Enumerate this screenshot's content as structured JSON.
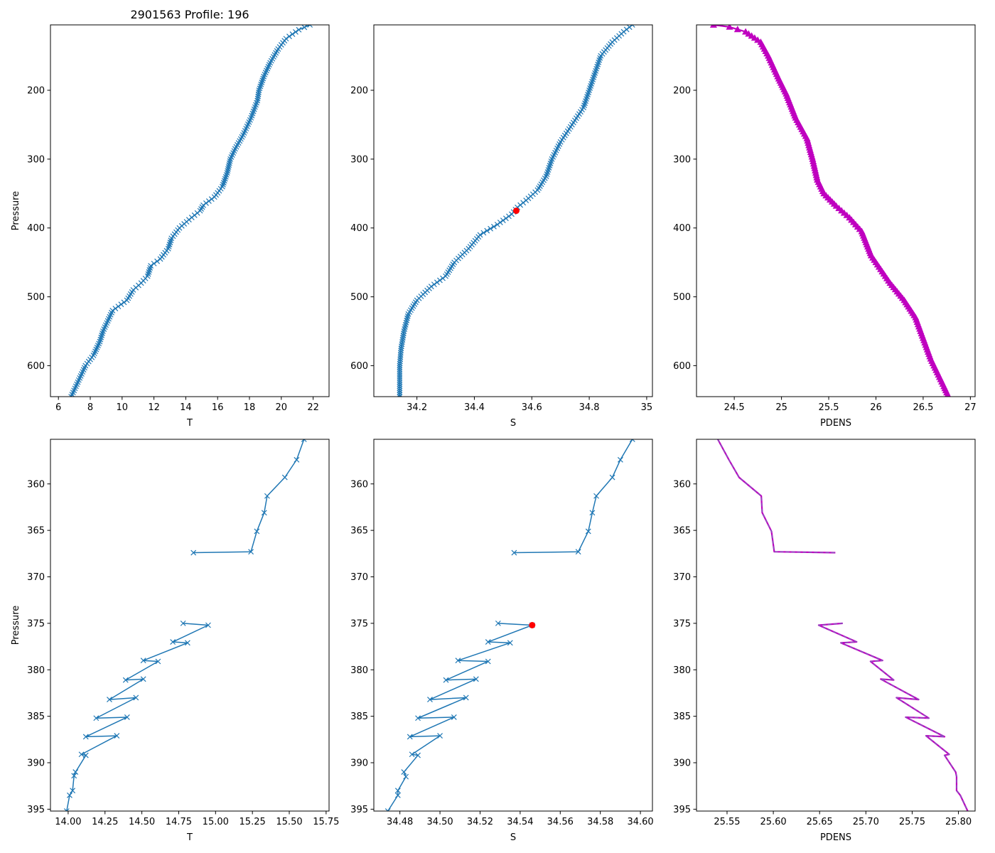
{
  "title": "2901563 Profile: 196",
  "colors": {
    "series": "#1f77b4",
    "highlight": "#ff0000",
    "density": "#bf00bf",
    "density_dash": "#8060c0"
  },
  "chart_data": [
    {
      "type": "line",
      "name": "temperature-full",
      "xlabel": "T",
      "ylabel": "Pressure",
      "xlim": [
        5.5,
        23
      ],
      "ylim": [
        645,
        105
      ],
      "xticks": [
        6,
        8,
        10,
        12,
        14,
        16,
        18,
        20,
        22
      ],
      "yticks": [
        200,
        300,
        400,
        500,
        600
      ],
      "marker": "x",
      "series": [
        {
          "name": "T",
          "points": [
            [
              21.8,
              105
            ],
            [
              21.1,
              112
            ],
            [
              20.3,
              125
            ],
            [
              19.8,
              140
            ],
            [
              19.3,
              160
            ],
            [
              18.9,
              180
            ],
            [
              18.6,
              200
            ],
            [
              18.5,
              215
            ],
            [
              18.1,
              240
            ],
            [
              17.6,
              265
            ],
            [
              17.1,
              285
            ],
            [
              16.8,
              300
            ],
            [
              16.6,
              320
            ],
            [
              16.3,
              340
            ],
            [
              15.8,
              355
            ],
            [
              15.1,
              367
            ],
            [
              14.9,
              375
            ],
            [
              14.2,
              388
            ],
            [
              13.6,
              400
            ],
            [
              13.1,
              415
            ],
            [
              12.9,
              430
            ],
            [
              12.4,
              445
            ],
            [
              11.8,
              455
            ],
            [
              11.6,
              470
            ],
            [
              11.2,
              480
            ],
            [
              10.7,
              490
            ],
            [
              10.3,
              505
            ],
            [
              9.4,
              520
            ],
            [
              9.1,
              535
            ],
            [
              8.8,
              550
            ],
            [
              8.6,
              565
            ],
            [
              8.2,
              585
            ],
            [
              7.7,
              600
            ],
            [
              7.4,
              615
            ],
            [
              7.1,
              630
            ],
            [
              6.8,
              645
            ]
          ]
        }
      ]
    },
    {
      "type": "line",
      "name": "salinity-full",
      "xlabel": "S",
      "ylabel": "",
      "xlim": [
        34.05,
        35.02
      ],
      "ylim": [
        645,
        105
      ],
      "xticks": [
        34.2,
        34.4,
        34.6,
        34.8,
        35.0
      ],
      "yticks": [
        200,
        300,
        400,
        500,
        600
      ],
      "marker": "x",
      "highlight": {
        "x": 34.546,
        "y": 375
      },
      "series": [
        {
          "name": "S",
          "points": [
            [
              34.95,
              105
            ],
            [
              34.92,
              115
            ],
            [
              34.88,
              130
            ],
            [
              34.84,
              150
            ],
            [
              34.82,
              175
            ],
            [
              34.8,
              200
            ],
            [
              34.78,
              225
            ],
            [
              34.74,
              250
            ],
            [
              34.7,
              275
            ],
            [
              34.67,
              300
            ],
            [
              34.65,
              325
            ],
            [
              34.62,
              345
            ],
            [
              34.58,
              360
            ],
            [
              34.55,
              370
            ],
            [
              34.53,
              380
            ],
            [
              34.48,
              395
            ],
            [
              34.42,
              410
            ],
            [
              34.38,
              430
            ],
            [
              34.33,
              450
            ],
            [
              34.3,
              470
            ],
            [
              34.25,
              485
            ],
            [
              34.2,
              505
            ],
            [
              34.17,
              525
            ],
            [
              34.155,
              550
            ],
            [
              34.145,
              575
            ],
            [
              34.14,
              600
            ],
            [
              34.14,
              645
            ]
          ]
        }
      ]
    },
    {
      "type": "line",
      "name": "density-full",
      "xlabel": "PDENS",
      "ylabel": "",
      "xlim": [
        24.1,
        27.05
      ],
      "ylim": [
        645,
        105
      ],
      "xticks": [
        24.5,
        25.0,
        25.5,
        26.0,
        26.5,
        27.0
      ],
      "yticks": [
        200,
        300,
        400,
        500,
        600
      ],
      "marker": "^",
      "series": [
        {
          "name": "PDENS",
          "points": [
            [
              24.28,
              105
            ],
            [
              24.45,
              108
            ],
            [
              24.62,
              115
            ],
            [
              24.78,
              130
            ],
            [
              24.86,
              150
            ],
            [
              24.96,
              180
            ],
            [
              25.05,
              205
            ],
            [
              25.15,
              240
            ],
            [
              25.27,
              270
            ],
            [
              25.33,
              300
            ],
            [
              25.38,
              330
            ],
            [
              25.45,
              350
            ],
            [
              25.58,
              368
            ],
            [
              25.72,
              385
            ],
            [
              25.85,
              405
            ],
            [
              25.95,
              440
            ],
            [
              26.05,
              460
            ],
            [
              26.15,
              480
            ],
            [
              26.3,
              505
            ],
            [
              26.42,
              530
            ],
            [
              26.5,
              560
            ],
            [
              26.58,
              590
            ],
            [
              26.65,
              610
            ],
            [
              26.72,
              630
            ],
            [
              26.77,
              645
            ]
          ]
        }
      ]
    },
    {
      "type": "line",
      "name": "temperature-zoom",
      "xlabel": "T",
      "ylabel": "Pressure",
      "xlim": [
        13.88,
        15.77
      ],
      "ylim": [
        395.2,
        355.2
      ],
      "xticks": [
        14.0,
        14.25,
        14.5,
        14.75,
        15.0,
        15.25,
        15.5,
        15.75
      ],
      "xtick_labels": [
        "14.00",
        "14.25",
        "14.50",
        "14.75",
        "15.00",
        "15.25",
        "15.50",
        "15.75"
      ],
      "yticks": [
        360,
        365,
        370,
        375,
        380,
        385,
        390,
        395
      ],
      "marker": "x",
      "segments": [
        [
          [
            15.6,
            355.2
          ],
          [
            15.55,
            357.4
          ],
          [
            15.47,
            359.3
          ],
          [
            15.35,
            361.3
          ],
          [
            15.33,
            363.1
          ],
          [
            15.28,
            365.1
          ],
          [
            15.24,
            367.3
          ],
          [
            14.85,
            367.4
          ]
        ],
        [
          [
            14.78,
            375.0
          ],
          [
            14.95,
            375.2
          ],
          [
            14.71,
            377.0
          ],
          [
            14.81,
            377.1
          ],
          [
            14.51,
            379.0
          ],
          [
            14.61,
            379.1
          ],
          [
            14.39,
            381.1
          ],
          [
            14.51,
            381.0
          ],
          [
            14.28,
            383.2
          ],
          [
            14.46,
            383.0
          ],
          [
            14.19,
            385.2
          ],
          [
            14.4,
            385.1
          ],
          [
            14.12,
            387.2
          ],
          [
            14.33,
            387.1
          ],
          [
            14.09,
            389.1
          ],
          [
            14.12,
            389.2
          ],
          [
            14.05,
            391.0
          ],
          [
            14.04,
            391.4
          ],
          [
            14.03,
            393.0
          ],
          [
            14.01,
            393.5
          ],
          [
            13.99,
            395.2
          ]
        ]
      ]
    },
    {
      "type": "line",
      "name": "salinity-zoom",
      "xlabel": "S",
      "ylabel": "",
      "xlim": [
        34.467,
        34.606
      ],
      "ylim": [
        395.2,
        355.2
      ],
      "xticks": [
        34.48,
        34.5,
        34.52,
        34.54,
        34.56,
        34.58,
        34.6
      ],
      "xtick_labels": [
        "34.48",
        "34.50",
        "34.52",
        "34.54",
        "34.56",
        "34.58",
        "34.60"
      ],
      "yticks": [
        360,
        365,
        370,
        375,
        380,
        385,
        390,
        395
      ],
      "marker": "x",
      "highlight": {
        "x": 34.546,
        "y": 375.2
      },
      "segments": [
        [
          [
            34.596,
            355.2
          ],
          [
            34.59,
            357.4
          ],
          [
            34.586,
            359.3
          ],
          [
            34.578,
            361.3
          ],
          [
            34.576,
            363.1
          ],
          [
            34.574,
            365.1
          ],
          [
            34.569,
            367.3
          ],
          [
            34.537,
            367.4
          ]
        ],
        [
          [
            34.529,
            375.0
          ],
          [
            34.546,
            375.2
          ],
          [
            34.524,
            377.0
          ],
          [
            34.535,
            377.1
          ],
          [
            34.509,
            379.0
          ],
          [
            34.524,
            379.1
          ],
          [
            34.503,
            381.1
          ],
          [
            34.518,
            381.0
          ],
          [
            34.495,
            383.2
          ],
          [
            34.513,
            383.0
          ],
          [
            34.489,
            385.2
          ],
          [
            34.507,
            385.1
          ],
          [
            34.485,
            387.2
          ],
          [
            34.5,
            387.1
          ],
          [
            34.486,
            389.1
          ],
          [
            34.489,
            389.2
          ],
          [
            34.482,
            391.0
          ],
          [
            34.483,
            391.5
          ],
          [
            34.479,
            393.0
          ],
          [
            34.479,
            393.5
          ],
          [
            34.474,
            395.2
          ]
        ]
      ]
    },
    {
      "type": "line",
      "name": "density-zoom",
      "xlabel": "PDENS",
      "ylabel": "",
      "xlim": [
        25.517,
        25.818
      ],
      "ylim": [
        395.2,
        355.2
      ],
      "xticks": [
        25.55,
        25.6,
        25.65,
        25.7,
        25.75,
        25.8
      ],
      "xtick_labels": [
        "25.55",
        "25.60",
        "25.65",
        "25.70",
        "25.75",
        "25.80"
      ],
      "yticks": [
        360,
        365,
        370,
        375,
        380,
        385,
        390,
        395
      ],
      "marker": "none",
      "segments": [
        [
          [
            25.54,
            355.2
          ],
          [
            25.552,
            357.4
          ],
          [
            25.563,
            359.3
          ],
          [
            25.587,
            361.3
          ],
          [
            25.588,
            363.1
          ],
          [
            25.598,
            365.1
          ],
          [
            25.601,
            367.3
          ],
          [
            25.667,
            367.4
          ]
        ],
        [
          [
            25.675,
            375.0
          ],
          [
            25.649,
            375.2
          ],
          [
            25.69,
            377.0
          ],
          [
            25.673,
            377.1
          ],
          [
            25.718,
            379.0
          ],
          [
            25.705,
            379.1
          ],
          [
            25.73,
            381.1
          ],
          [
            25.716,
            381.0
          ],
          [
            25.757,
            383.2
          ],
          [
            25.733,
            383.0
          ],
          [
            25.768,
            385.2
          ],
          [
            25.743,
            385.1
          ],
          [
            25.785,
            387.2
          ],
          [
            25.765,
            387.1
          ],
          [
            25.79,
            389.1
          ],
          [
            25.785,
            389.2
          ],
          [
            25.797,
            391.0
          ],
          [
            25.798,
            391.5
          ],
          [
            25.798,
            393.0
          ],
          [
            25.802,
            393.5
          ],
          [
            25.81,
            395.2
          ]
        ]
      ]
    }
  ]
}
